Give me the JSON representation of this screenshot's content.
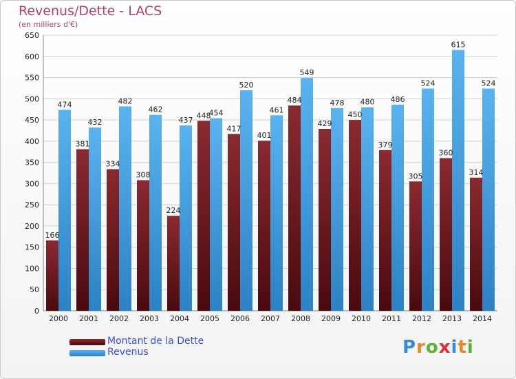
{
  "title": "Revenus/Dette - LACS",
  "subtitle": "(en milliers d'€)",
  "logo": {
    "text": "Proxiti",
    "letter_colors": [
      "#3a8ad6",
      "#e9862a",
      "#5fb13a",
      "#d9323b",
      "#3a8ad6",
      "#e9862a",
      "#5fb13a"
    ]
  },
  "colors": {
    "dette": "#6e1a1e",
    "revenus": "#3e9ee0"
  },
  "legend": [
    {
      "label": "Montant de la Dette",
      "color": "#6e1a1e"
    },
    {
      "label": "Revenus",
      "color": "#3e9ee0"
    }
  ],
  "chart_data": {
    "type": "bar",
    "title": "Revenus/Dette - LACS",
    "subtitle": "(en milliers d'€)",
    "xlabel": "",
    "ylabel": "",
    "ylim": [
      0,
      650
    ],
    "yticks": [
      0,
      50,
      100,
      150,
      200,
      250,
      300,
      350,
      400,
      450,
      500,
      550,
      600,
      650
    ],
    "grid": true,
    "legend_position": "bottom-left",
    "categories": [
      "2000",
      "2001",
      "2002",
      "2003",
      "2004",
      "2005",
      "2006",
      "2007",
      "2008",
      "2009",
      "2010",
      "2011",
      "2012",
      "2013",
      "2014"
    ],
    "series": [
      {
        "name": "Montant de la Dette",
        "values": [
          166,
          381,
          334,
          308,
          224,
          448,
          417,
          401,
          484,
          429,
          450,
          379,
          305,
          360,
          314
        ]
      },
      {
        "name": "Revenus",
        "values": [
          474,
          432,
          482,
          462,
          437,
          454,
          520,
          461,
          549,
          478,
          480,
          486,
          524,
          615,
          524
        ]
      }
    ]
  }
}
